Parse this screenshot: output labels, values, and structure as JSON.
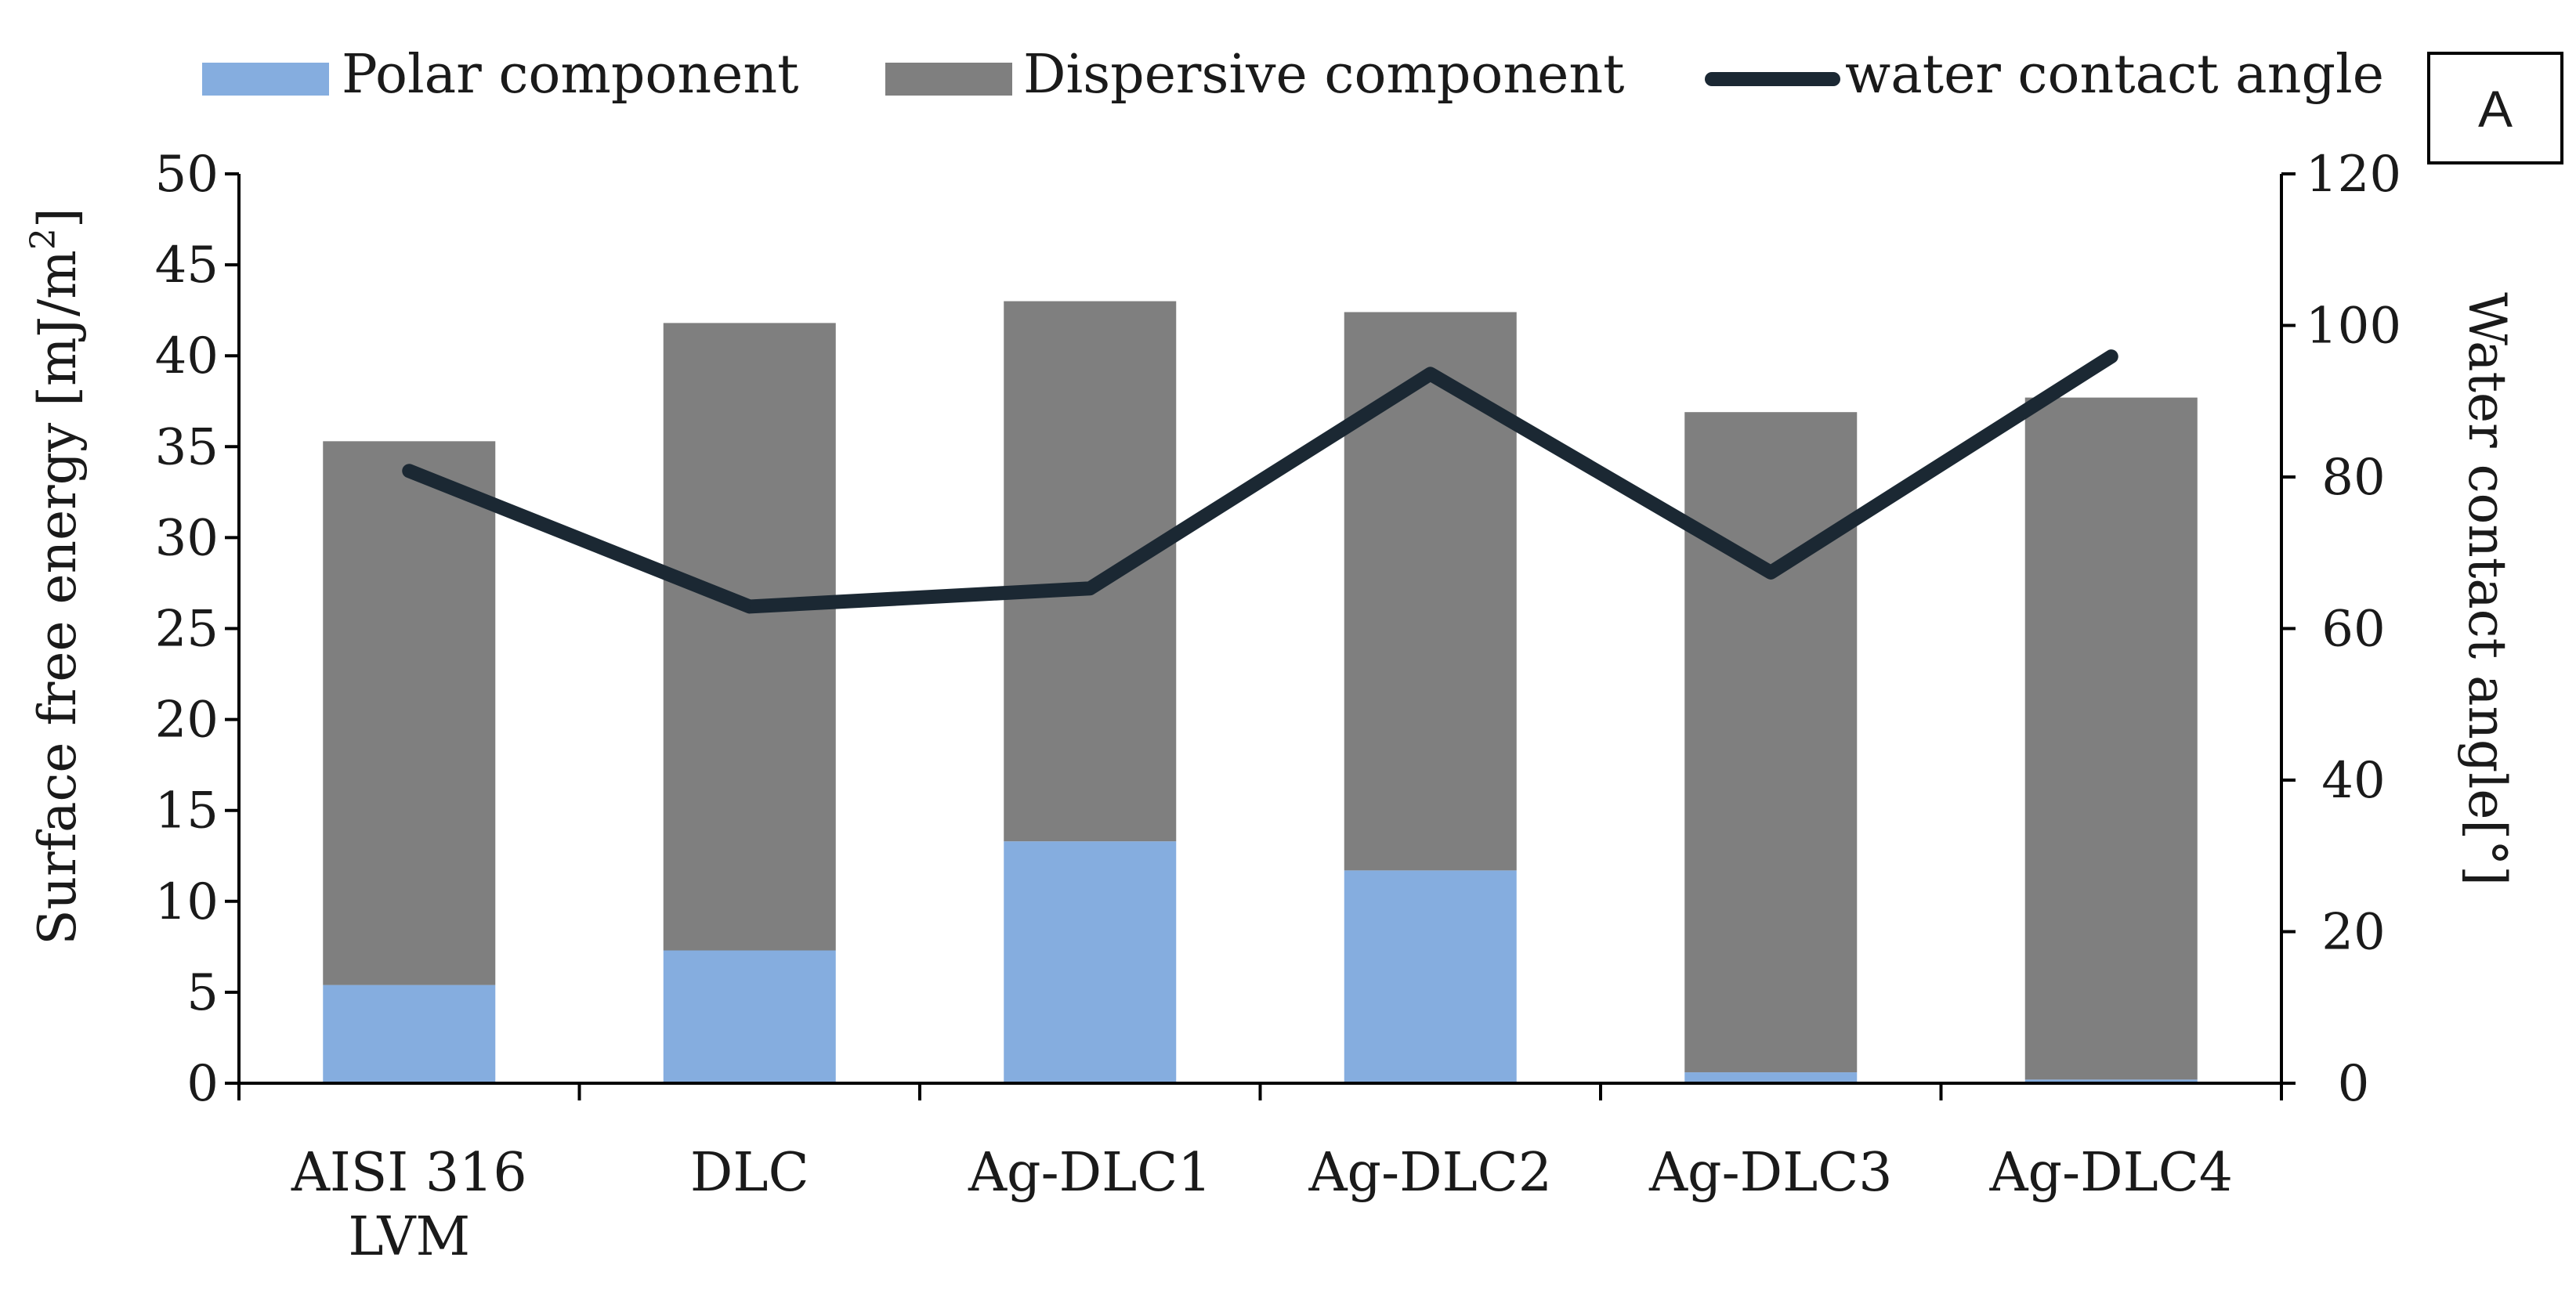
{
  "panel_label": "A",
  "colors": {
    "polar": "#85ADDF",
    "dispersive": "#7F7F7F",
    "line": "#1B2833",
    "axis": "#000000"
  },
  "legend": {
    "polar": "Polar component",
    "dispersive": "Dispersive component",
    "line": "water contact angle"
  },
  "chart_data": {
    "type": "bar",
    "stacked": true,
    "categories": [
      "AISI 316 LVM",
      "DLC",
      "Ag-DLC1",
      "Ag-DLC2",
      "Ag-DLC3",
      "Ag-DLC4"
    ],
    "category_lines": [
      [
        "AISI 316",
        "LVM"
      ],
      [
        "DLC"
      ],
      [
        "Ag-DLC1"
      ],
      [
        "Ag-DLC2"
      ],
      [
        "Ag-DLC3"
      ],
      [
        "Ag-DLC4"
      ]
    ],
    "series": [
      {
        "name": "Polar component",
        "type": "bar",
        "axis": "left",
        "values": [
          5.4,
          7.3,
          13.3,
          11.7,
          0.6,
          0.2
        ]
      },
      {
        "name": "Dispersive component",
        "type": "bar",
        "axis": "left",
        "values": [
          29.9,
          34.5,
          29.7,
          30.7,
          36.3,
          37.5
        ]
      },
      {
        "name": "water contact angle",
        "type": "line",
        "axis": "right",
        "values": [
          80.8,
          62.9,
          65.3,
          93.6,
          67.4,
          95.9
        ]
      }
    ],
    "ylabel": "Surface free energy [mJ/m²]",
    "ylabel_main": "Surface free energy [mJ/m",
    "ylabel_sup": "2",
    "ylabel_end": "]",
    "y2label": "Water contact angle[°]",
    "ylim": [
      0,
      50
    ],
    "yticks": [
      0,
      5,
      10,
      15,
      20,
      25,
      30,
      35,
      40,
      45,
      50
    ],
    "y2lim": [
      0,
      120
    ],
    "y2ticks": [
      0,
      20,
      40,
      60,
      80,
      100,
      120
    ],
    "grid": false,
    "legend_position": "top"
  }
}
